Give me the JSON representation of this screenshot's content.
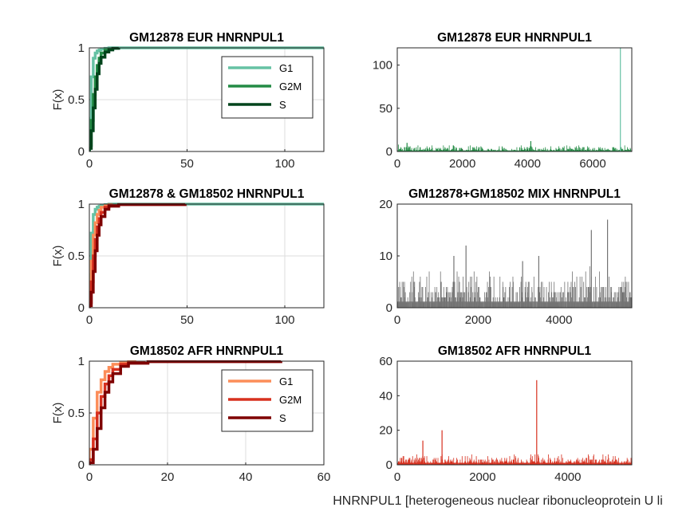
{
  "figure_xlabel": "HNRNPUL1 [heterogeneous nuclear ribonucleoprotein U li",
  "colors": {
    "eur_g1": "#66c2a4",
    "eur_g2m": "#238b45",
    "eur_s": "#00441b",
    "afr_g1": "#fc8d59",
    "afr_g2m": "#d7301f",
    "afr_s": "#7f0000",
    "mix": "#737373",
    "grid": "#dcdcdc",
    "axis": "#262626"
  },
  "chart_data": [
    {
      "id": "cdf_eur",
      "type": "line",
      "title": "GM12878 EUR HNRNPUL1",
      "ylabel": "F(x)",
      "xlim": [
        0,
        120
      ],
      "ylim": [
        0,
        1
      ],
      "xticks": [
        "0",
        "50",
        "100"
      ],
      "yticks": [
        "0",
        "0.5",
        "1"
      ],
      "grid": true,
      "legend": "top-right",
      "series": [
        {
          "name": "G1",
          "color": "#66c2a4",
          "x": [
            0,
            1,
            2,
            3,
            4,
            5,
            6,
            8,
            10,
            120
          ],
          "y": [
            0.32,
            0.72,
            0.9,
            0.95,
            0.97,
            0.98,
            0.99,
            0.995,
            1,
            1
          ]
        },
        {
          "name": "G2M",
          "color": "#238b45",
          "x": [
            0,
            1,
            2,
            3,
            4,
            5,
            6,
            8,
            10,
            12
          ],
          "y": [
            0.06,
            0.3,
            0.55,
            0.72,
            0.83,
            0.9,
            0.95,
            0.98,
            0.99,
            1
          ]
        },
        {
          "name": "S",
          "color": "#00441b",
          "x": [
            0,
            1,
            2,
            3,
            4,
            5,
            6,
            8,
            10,
            12,
            15
          ],
          "y": [
            0.03,
            0.2,
            0.42,
            0.6,
            0.75,
            0.85,
            0.91,
            0.96,
            0.98,
            0.995,
            1
          ]
        }
      ]
    },
    {
      "id": "hist_eur",
      "type": "bar",
      "title": "GM12878 EUR HNRNPUL1",
      "xlim": [
        0,
        7200
      ],
      "ylim": [
        0,
        120
      ],
      "xticks": [
        "0",
        "2000",
        "4000",
        "6000"
      ],
      "yticks": [
        "0",
        "50",
        "100"
      ],
      "grid": false,
      "bar_color": "#238b45",
      "n_bars": 7200,
      "typical_max": 7,
      "spikes": [
        {
          "x": 6850,
          "y": 120,
          "color": "#66c2a4"
        },
        {
          "x": 4100,
          "y": 12
        },
        {
          "x": 300,
          "y": 10
        }
      ]
    },
    {
      "id": "cdf_mix",
      "type": "line",
      "title": "GM12878 & GM18502 HNRNPUL1",
      "ylabel": "F(x)",
      "xlim": [
        0,
        120
      ],
      "ylim": [
        0,
        1
      ],
      "xticks": [
        "0",
        "50",
        "100"
      ],
      "yticks": [
        "0",
        "0.5",
        "1"
      ],
      "grid": true,
      "legend": "none",
      "series": [
        {
          "color": "#66c2a4",
          "x": [
            0,
            1,
            2,
            3,
            4,
            5,
            6,
            8,
            10,
            120
          ],
          "y": [
            0.32,
            0.72,
            0.9,
            0.95,
            0.97,
            0.98,
            0.99,
            0.995,
            1,
            1
          ]
        },
        {
          "color": "#fc8d59",
          "x": [
            0,
            1,
            2,
            3,
            4,
            5,
            6,
            8,
            10,
            12
          ],
          "y": [
            0.15,
            0.45,
            0.7,
            0.82,
            0.9,
            0.94,
            0.97,
            0.99,
            0.995,
            1
          ]
        },
        {
          "color": "#d7301f",
          "x": [
            0,
            1,
            2,
            3,
            4,
            5,
            6,
            8,
            10,
            14
          ],
          "y": [
            0.05,
            0.25,
            0.5,
            0.66,
            0.78,
            0.86,
            0.92,
            0.97,
            0.99,
            1
          ]
        },
        {
          "color": "#7f0000",
          "x": [
            0,
            1,
            2,
            3,
            4,
            5,
            6,
            8,
            10,
            15,
            49
          ],
          "y": [
            0.02,
            0.15,
            0.35,
            0.55,
            0.7,
            0.8,
            0.88,
            0.95,
            0.98,
            0.995,
            1
          ]
        }
      ]
    },
    {
      "id": "hist_mix",
      "type": "bar",
      "title": "GM12878+GM18502 MIX HNRNPUL1",
      "xlim": [
        0,
        5800
      ],
      "ylim": [
        0,
        20
      ],
      "xticks": [
        "0",
        "2000",
        "4000"
      ],
      "yticks": [
        "0",
        "10",
        "20"
      ],
      "grid": false,
      "bar_color": "#737373",
      "n_bars": 5800,
      "typical_max": 7,
      "spikes": [
        {
          "x": 5200,
          "y": 17
        },
        {
          "x": 4800,
          "y": 15
        },
        {
          "x": 1700,
          "y": 12
        },
        {
          "x": 1400,
          "y": 10
        },
        {
          "x": 3500,
          "y": 10
        },
        {
          "x": 3100,
          "y": 9
        }
      ]
    },
    {
      "id": "cdf_afr",
      "type": "line",
      "title": "GM18502 AFR HNRNPUL1",
      "ylabel": "F(x)",
      "xlim": [
        0,
        60
      ],
      "ylim": [
        0,
        1
      ],
      "xticks": [
        "0",
        "20",
        "40",
        "60"
      ],
      "yticks": [
        "0",
        "0.5",
        "1"
      ],
      "grid": true,
      "legend": "top-right",
      "series": [
        {
          "name": "G1",
          "color": "#fc8d59",
          "x": [
            0,
            1,
            2,
            3,
            4,
            5,
            6,
            8,
            10,
            12
          ],
          "y": [
            0.15,
            0.45,
            0.7,
            0.82,
            0.9,
            0.94,
            0.97,
            0.99,
            0.995,
            1
          ]
        },
        {
          "name": "G2M",
          "color": "#d7301f",
          "x": [
            0,
            1,
            2,
            3,
            4,
            5,
            6,
            8,
            10,
            14
          ],
          "y": [
            0.05,
            0.25,
            0.5,
            0.66,
            0.78,
            0.86,
            0.92,
            0.97,
            0.99,
            1
          ]
        },
        {
          "name": "S",
          "color": "#7f0000",
          "x": [
            0,
            1,
            2,
            3,
            4,
            5,
            6,
            8,
            10,
            15,
            49
          ],
          "y": [
            0.02,
            0.15,
            0.35,
            0.55,
            0.7,
            0.8,
            0.88,
            0.95,
            0.98,
            0.995,
            1
          ]
        }
      ]
    },
    {
      "id": "hist_afr",
      "type": "bar",
      "title": "GM18502 AFR HNRNPUL1",
      "xlim": [
        0,
        5500
      ],
      "ylim": [
        0,
        60
      ],
      "xticks": [
        "0",
        "2000",
        "4000"
      ],
      "yticks": [
        "0",
        "20",
        "40",
        "60"
      ],
      "grid": false,
      "bar_color": "#d7301f",
      "n_bars": 5500,
      "typical_max": 6,
      "spikes": [
        {
          "x": 3270,
          "y": 49
        },
        {
          "x": 1050,
          "y": 20
        },
        {
          "x": 600,
          "y": 14
        }
      ]
    }
  ]
}
